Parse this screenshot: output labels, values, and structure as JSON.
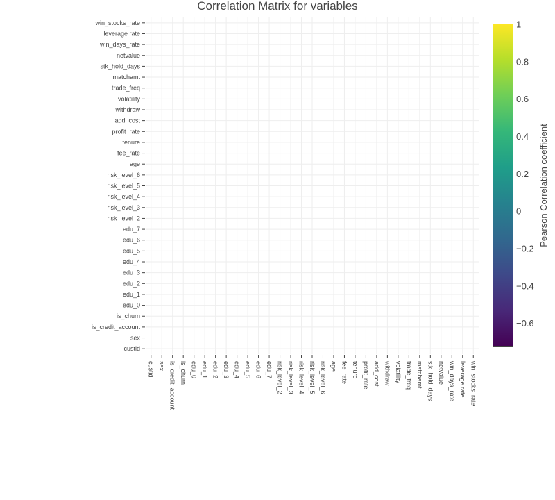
{
  "chart_data": {
    "type": "heatmap",
    "title": "Correlation Matrix for variables",
    "variables": [
      "custid",
      "sex",
      "is_credit_account",
      "is_churn",
      "edu_0",
      "edu_1",
      "edu_2",
      "edu_3",
      "edu_4",
      "edu_5",
      "edu_6",
      "edu_7",
      "risk_level_2",
      "risk_level_3",
      "risk_level_4",
      "risk_level_5",
      "risk_level_6",
      "age",
      "fee_rate",
      "tenure",
      "profit_rate",
      "add_cost",
      "withdraw",
      "volatility",
      "trade_freq",
      "matchamt",
      "stk_hold_days",
      "netvalue",
      "win_days_rate",
      "leverage rate",
      "win_stocks_rate"
    ],
    "values": null,
    "grid": true,
    "colorscale": "Viridis",
    "colorbar": {
      "title": "Pearson Correlation coefficient",
      "range": [
        -0.72,
        1
      ],
      "tick_values": [
        1,
        0.8,
        0.6,
        0.4,
        0.2,
        0,
        -0.2,
        -0.4,
        -0.6
      ],
      "tick_labels": [
        "1",
        "0.8",
        "0.6",
        "0.4",
        "0.2",
        "0",
        "−0.2",
        "−0.4",
        "−0.6"
      ],
      "colors": [
        "#440154",
        "#482878",
        "#3e4989",
        "#31688e",
        "#26828e",
        "#1f9e89",
        "#35b779",
        "#6ece58",
        "#b5de2b",
        "#fde725"
      ],
      "border_color": "#444444"
    },
    "gridline_color": "#eeeeee",
    "tick_color": "#444444"
  }
}
